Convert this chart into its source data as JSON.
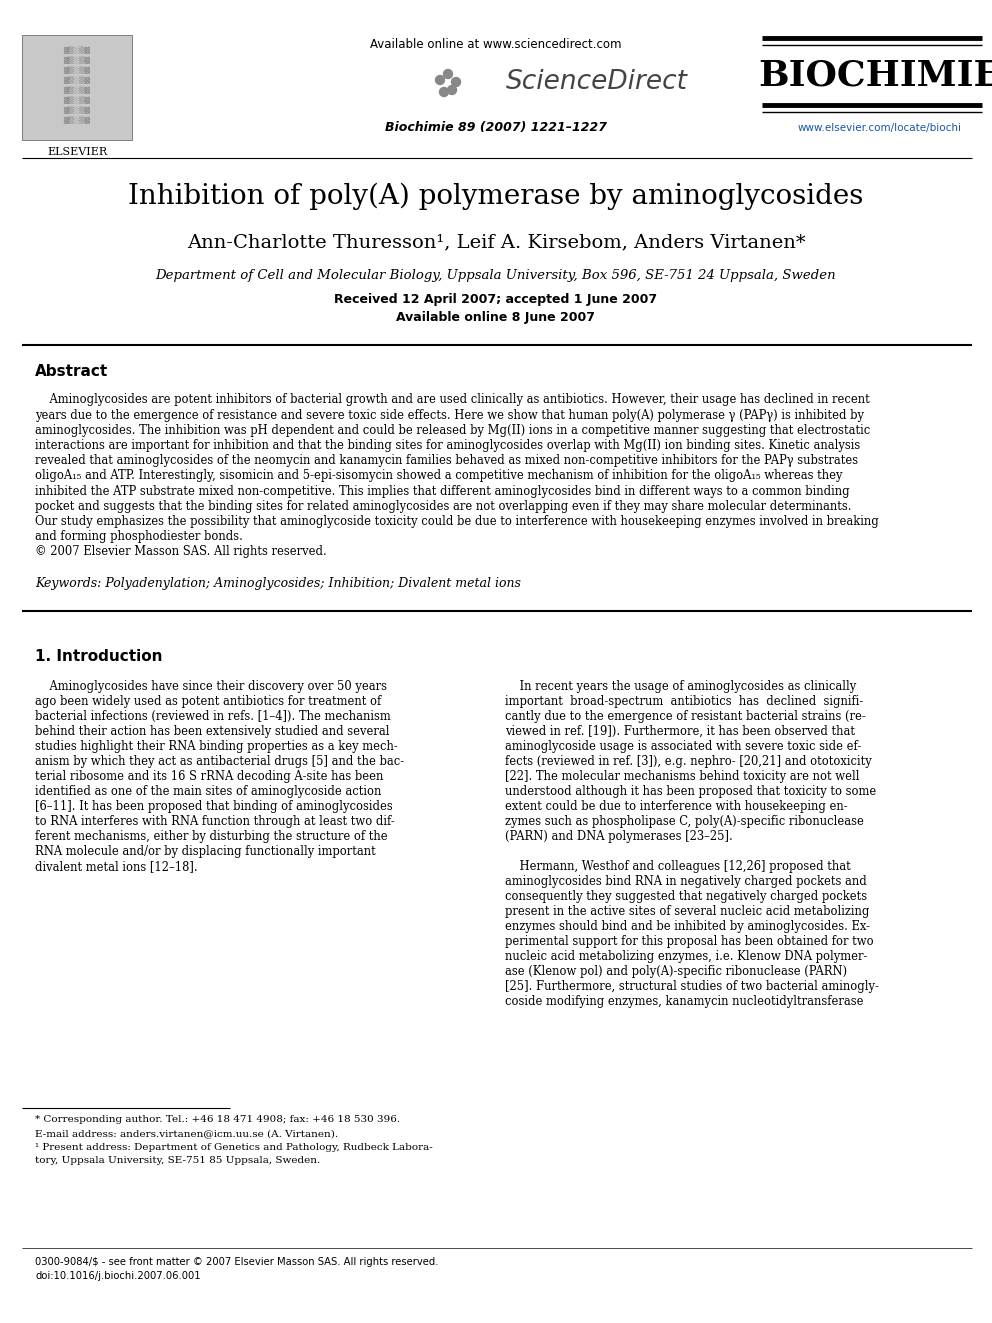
{
  "bg_color": "#ffffff",
  "title": "Inhibition of poly(A) polymerase by aminoglycosides",
  "authors": "Ann-Charlotte Thuresson¹, Leif A. Kirsebom, Anders Virtanen*",
  "affiliation": "Department of Cell and Molecular Biology, Uppsala University, Box 596, SE-751 24 Uppsala, Sweden",
  "received": "Received 12 April 2007; accepted 1 June 2007",
  "available": "Available online 8 June 2007",
  "journal_name": "BIOCHIMIE",
  "journal_ref": "Biochimie 89 (2007) 1221–1227",
  "sciencedirect_url": "Available online at www.sciencedirect.com",
  "sciencedirect_logo": "ScienceDirect",
  "website_url": "www.elsevier.com/locate/biochi",
  "elsevier_text": "ELSEVIER",
  "abstract_title": "Abstract",
  "keywords_text": "Keywords: Polyadenylation; Aminoglycosides; Inhibition; Divalent metal ions",
  "section1_title": "1. Introduction",
  "footnote_star": "* Corresponding author. Tel.: +46 18 471 4908; fax: +46 18 530 396.",
  "footnote_email": "E-mail address: anders.virtanen@icm.uu.se (A. Virtanen).",
  "footnote_1a": "¹ Present address: Department of Genetics and Pathology, Rudbeck Labora-",
  "footnote_1b": "tory, Uppsala University, SE-751 85 Uppsala, Sweden.",
  "footer1": "0300-9084/$ - see front matter © 2007 Elsevier Masson SAS. All rights reserved.",
  "footer2": "doi:10.1016/j.biochi.2007.06.001",
  "abstract_lines": [
    "    Aminoglycosides are potent inhibitors of bacterial growth and are used clinically as antibiotics. However, their usage has declined in recent",
    "years due to the emergence of resistance and severe toxic side effects. Here we show that human poly(A) polymerase γ (PAPγ) is inhibited by",
    "aminoglycosides. The inhibition was pH dependent and could be released by Mg(II) ions in a competitive manner suggesting that electrostatic",
    "interactions are important for inhibition and that the binding sites for aminoglycosides overlap with Mg(II) ion binding sites. Kinetic analysis",
    "revealed that aminoglycosides of the neomycin and kanamycin families behaved as mixed non-competitive inhibitors for the PAPγ substrates",
    "oligoA₁₅ and ATP. Interestingly, sisomicin and 5-epi-sisomycin showed a competitive mechanism of inhibition for the oligoA₁₅ whereas they",
    "inhibited the ATP substrate mixed non-competitive. This implies that different aminoglycosides bind in different ways to a common binding",
    "pocket and suggests that the binding sites for related aminoglycosides are not overlapping even if they may share molecular determinants.",
    "Our study emphasizes the possibility that aminoglycoside toxicity could be due to interference with housekeeping enzymes involved in breaking",
    "and forming phosphodiester bonds.",
    "© 2007 Elsevier Masson SAS. All rights reserved."
  ],
  "left_col_lines": [
    "    Aminoglycosides have since their discovery over 50 years",
    "ago been widely used as potent antibiotics for treatment of",
    "bacterial infections (reviewed in refs. [1–4]). The mechanism",
    "behind their action has been extensively studied and several",
    "studies highlight their RNA binding properties as a key mech-",
    "anism by which they act as antibacterial drugs [5] and the bac-",
    "terial ribosome and its 16 S rRNA decoding A-site has been",
    "identified as one of the main sites of aminoglycoside action",
    "[6–11]. It has been proposed that binding of aminoglycosides",
    "to RNA interferes with RNA function through at least two dif-",
    "ferent mechanisms, either by disturbing the structure of the",
    "RNA molecule and/or by displacing functionally important",
    "divalent metal ions [12–18]."
  ],
  "right_col_lines": [
    "    In recent years the usage of aminoglycosides as clinically",
    "important  broad-spectrum  antibiotics  has  declined  signifi-",
    "cantly due to the emergence of resistant bacterial strains (re-",
    "viewed in ref. [19]). Furthermore, it has been observed that",
    "aminoglycoside usage is associated with severe toxic side ef-",
    "fects (reviewed in ref. [3]), e.g. nephro- [20,21] and ototoxicity",
    "[22]. The molecular mechanisms behind toxicity are not well",
    "understood although it has been proposed that toxicity to some",
    "extent could be due to interference with housekeeping en-",
    "zymes such as phospholipase C, poly(A)-specific ribonuclease",
    "(PARN) and DNA polymerases [23–25].",
    "",
    "    Hermann, Westhof and colleagues [12,26] proposed that",
    "aminoglycosides bind RNA in negatively charged pockets and",
    "consequently they suggested that negatively charged pockets",
    "present in the active sites of several nucleic acid metabolizing",
    "enzymes should bind and be inhibited by aminoglycosides. Ex-",
    "perimental support for this proposal has been obtained for two",
    "nucleic acid metabolizing enzymes, i.e. Klenow DNA polymer-",
    "ase (Klenow pol) and poly(A)-specific ribonuclease (PARN)",
    "[25]. Furthermore, structural studies of two bacterial aminogly-",
    "coside modifying enzymes, kanamycin nucleotidyltransferase"
  ]
}
